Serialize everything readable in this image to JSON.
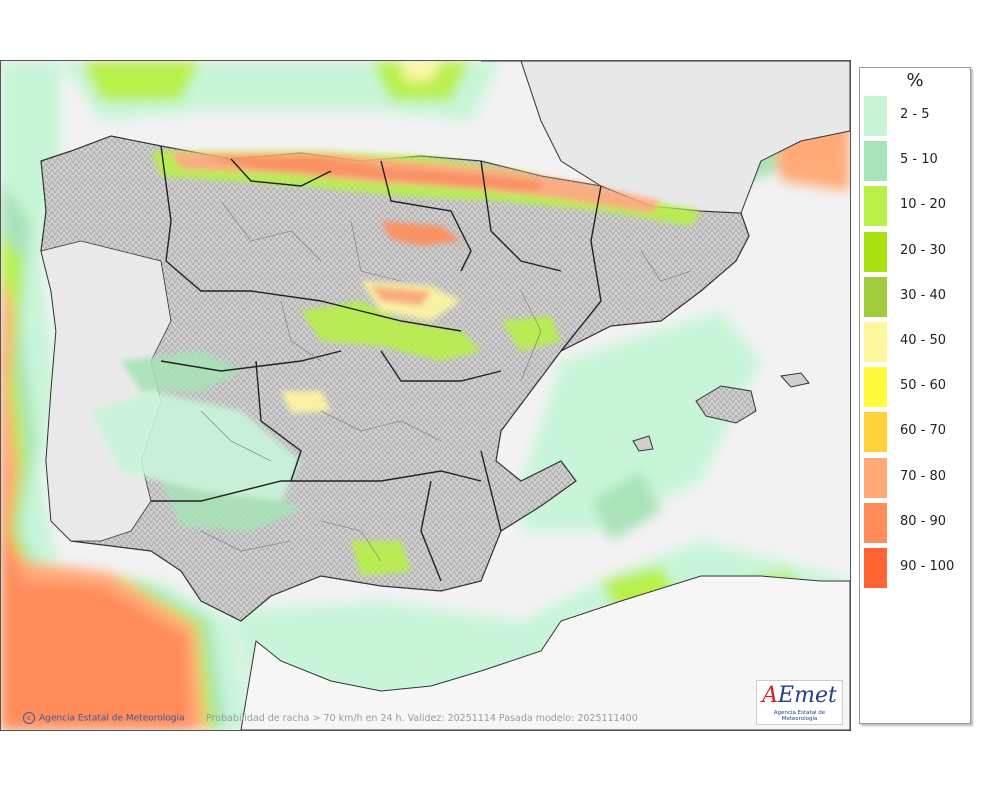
{
  "map": {
    "caption": "Probabilidad de racha > 70 km/h en 24 h. Validez: 20251114 Pasada modelo: 2025111400",
    "credit": "Agencia Estatal de Meteorologia",
    "logo_word_prefix": "A",
    "logo_word_rest": "Emet",
    "logo_subtitle": "Agencia Estatal de Meteorología"
  },
  "legend": {
    "unit": "%",
    "items": [
      {
        "label": "2 - 5",
        "color": "#c8f5d8"
      },
      {
        "label": "5 - 10",
        "color": "#a8e2b8"
      },
      {
        "label": "10 - 20",
        "color": "#b8f048"
      },
      {
        "label": "20 - 30",
        "color": "#a8e010"
      },
      {
        "label": "30 - 40",
        "color": "#a0cc3c"
      },
      {
        "label": "40 - 50",
        "color": "#fff6a0"
      },
      {
        "label": "50 - 60",
        "color": "#fffa3c"
      },
      {
        "label": "60 - 70",
        "color": "#ffd23c"
      },
      {
        "label": "70 - 80",
        "color": "#ffaa78"
      },
      {
        "label": "80 - 90",
        "color": "#ff8c5a"
      },
      {
        "label": "90 - 100",
        "color": "#ff6432"
      }
    ]
  }
}
